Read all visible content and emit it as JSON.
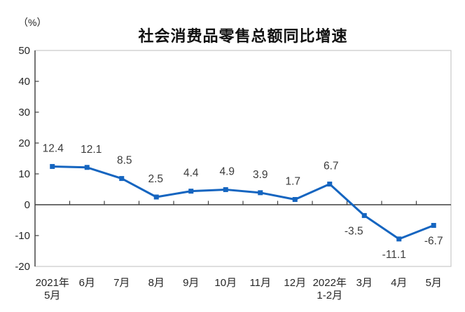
{
  "figure": {
    "title": "社会消费品零售总额同比增速",
    "unit_label": "（%）"
  },
  "chart_data": {
    "type": "line",
    "title": "社会消费品零售总额同比增速",
    "unit_label": "（%）",
    "categories": [
      "2021年\n5月",
      "6月",
      "7月",
      "8月",
      "9月",
      "10月",
      "11月",
      "12月",
      "2022年\n1-2月",
      "3月",
      "4月",
      "5月"
    ],
    "series": [
      {
        "name": "社会消费品零售总额同比增速",
        "values": [
          12.4,
          12.1,
          8.5,
          2.5,
          4.4,
          4.9,
          3.9,
          1.7,
          6.7,
          -3.5,
          -11.1,
          -6.7
        ],
        "point_labels": [
          "12.4",
          "12.1",
          "8.5",
          "2.5",
          "4.4",
          "4.9",
          "3.9",
          "1.7",
          "6.7",
          "-3.5",
          "-11.1",
          "-6.7"
        ]
      }
    ],
    "ylim": [
      -20,
      50
    ],
    "ytick_step": 10,
    "ytick_labels": [
      "50",
      "40",
      "30",
      "20",
      "10",
      "0",
      "-10",
      "-20"
    ],
    "grid": false,
    "legend": "none",
    "marker": "square",
    "label_dx": [
      1,
      6,
      4,
      -1,
      0,
      2,
      0,
      -3,
      2,
      -15,
      -7,
      0
    ],
    "colors": {
      "line": "#1565C0",
      "marker": "#1565C0",
      "data_label": "#3B3B3B",
      "axis": "#3F3F3F",
      "frame": "#C9C9C9",
      "tick_label": "#262626",
      "background": "#FFFFFF"
    }
  }
}
